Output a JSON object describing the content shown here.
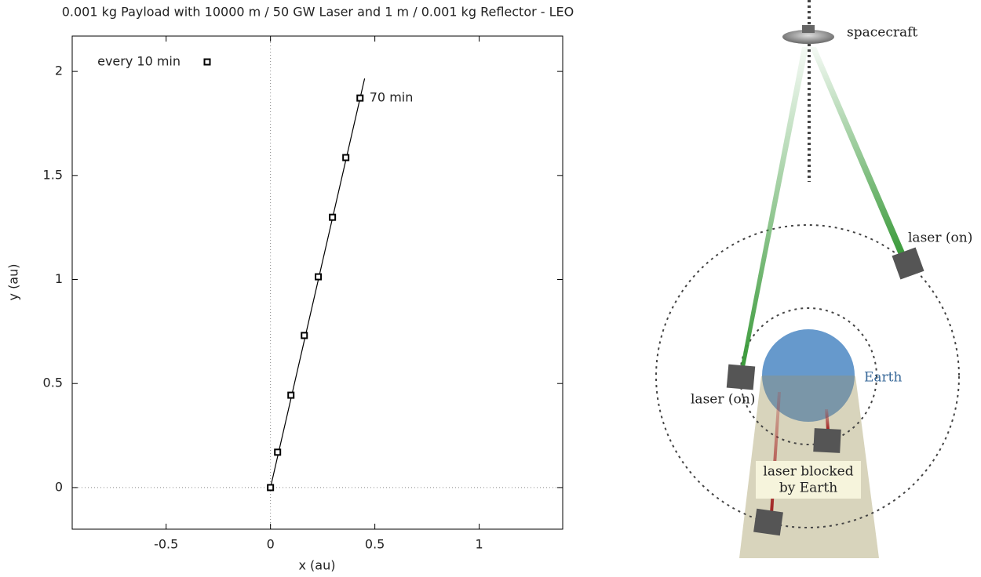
{
  "chart_data": {
    "type": "scatter",
    "title": "0.001 kg Payload with 10000 m / 50 GW Laser and 1 m / 0.001 kg Reflector - LEO",
    "x_label": "x (au)",
    "y_label": "y (au)",
    "xlim": [
      -0.95,
      1.4
    ],
    "ylim": [
      -0.2,
      2.17
    ],
    "xticks": [
      -0.5,
      0,
      0.5,
      1
    ],
    "yticks": [
      0,
      0.5,
      1,
      1.5,
      2
    ],
    "zero_lines": true,
    "legend": "upper left",
    "series": [
      {
        "name": "every 10 min",
        "color": "#000000",
        "x": [
          0,
          0.034,
          0.098,
          0.162,
          0.229,
          0.297,
          0.361,
          0.429
        ],
        "values": [
          0,
          0.17,
          0.444,
          0.731,
          1.013,
          1.299,
          1.586,
          1.872
        ]
      },
      {
        "color": "#000000",
        "line": true,
        "x": [
          0,
          0.451
        ],
        "values": [
          0,
          1.966
        ]
      }
    ],
    "annotations": [
      "70 min"
    ]
  },
  "diagram": {
    "spacecraft": "spacecraft",
    "laser_right": "laser (on)",
    "laser_left": "laser (on)",
    "earth": "Earth",
    "blocked_line1": "laser blocked",
    "blocked_line2": "by Earth"
  }
}
